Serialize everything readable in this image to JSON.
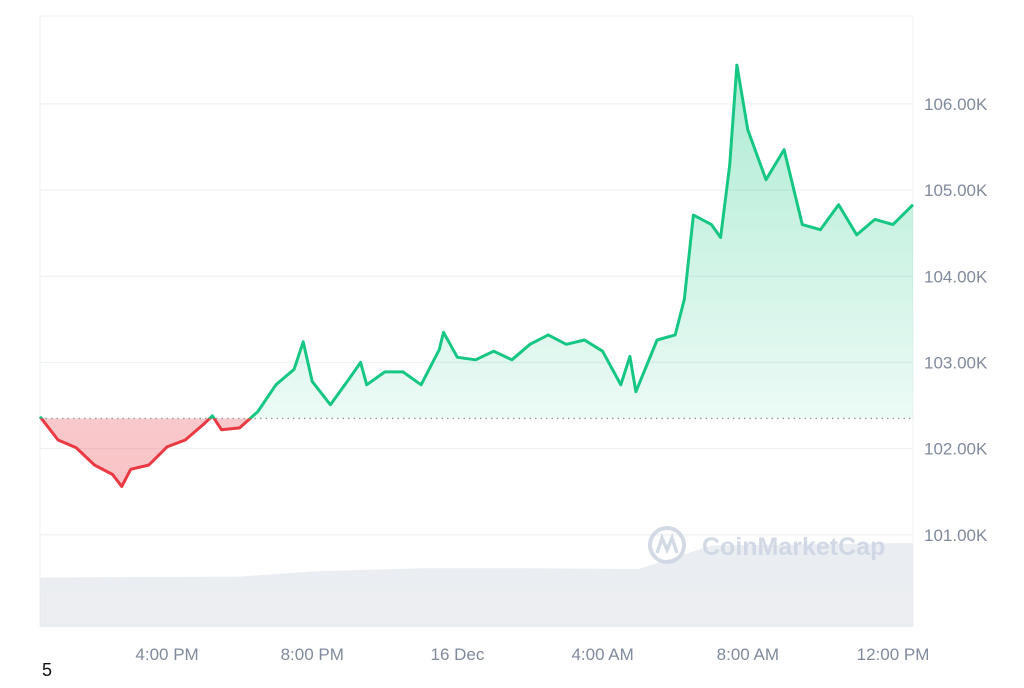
{
  "chart_data": {
    "type": "area",
    "title": "",
    "xlabel": "",
    "ylabel": "",
    "x_ticks": [
      "4:00 PM",
      "8:00 PM",
      "16 Dec",
      "4:00 AM",
      "8:00 AM",
      "12:00 PM"
    ],
    "x_tick_times": [
      "15 Dec 16:00",
      "15 Dec 20:00",
      "16 Dec 00:00",
      "16 Dec 04:00",
      "16 Dec 08:00",
      "16 Dec 12:00"
    ],
    "xlim": [
      "15 Dec 12:30",
      "16 Dec 12:33"
    ],
    "y_ticks": [
      "101.00K",
      "102.00K",
      "103.00K",
      "104.00K",
      "105.00K",
      "106.00K"
    ],
    "y_tick_values": [
      101,
      102,
      103,
      104,
      105,
      106
    ],
    "ylim": [
      99.93,
      107.02
    ],
    "y_unit": "K",
    "baseline": 102.35,
    "grid": "horizontal",
    "colors": {
      "up": "#16c784",
      "down": "#ea3943",
      "grid": "#eff2f5",
      "volume": "#e6eaee",
      "axis_text": "#808a9d"
    },
    "series": [
      {
        "x": [
          "15 Dec 12:30",
          "15 Dec 13:00",
          "15 Dec 13:30",
          "15 Dec 14:00",
          "15 Dec 14:30",
          "15 Dec 14:45",
          "15 Dec 15:00",
          "15 Dec 15:30",
          "15 Dec 16:00",
          "15 Dec 16:30",
          "15 Dec 17:00",
          "15 Dec 17:15",
          "15 Dec 17:30",
          "15 Dec 18:00",
          "15 Dec 18:30",
          "15 Dec 19:00",
          "15 Dec 19:30",
          "15 Dec 19:45",
          "15 Dec 20:00",
          "15 Dec 20:30",
          "15 Dec 21:00",
          "15 Dec 21:20",
          "15 Dec 21:30",
          "15 Dec 22:00",
          "15 Dec 22:30",
          "15 Dec 23:00",
          "15 Dec 23:30",
          "15 Dec 23:37",
          "16 Dec 00:00",
          "16 Dec 00:30",
          "16 Dec 01:00",
          "16 Dec 01:30",
          "16 Dec 02:00",
          "16 Dec 02:30",
          "16 Dec 03:00",
          "16 Dec 03:30",
          "16 Dec 04:00",
          "16 Dec 04:30",
          "16 Dec 04:45",
          "16 Dec 04:55",
          "16 Dec 05:30",
          "16 Dec 06:00",
          "16 Dec 06:15",
          "16 Dec 06:30",
          "16 Dec 07:00",
          "16 Dec 07:15",
          "16 Dec 07:30",
          "16 Dec 07:42",
          "16 Dec 08:00",
          "16 Dec 08:30",
          "16 Dec 09:00",
          "16 Dec 09:30",
          "16 Dec 10:00",
          "16 Dec 10:30",
          "16 Dec 11:00",
          "16 Dec 11:30",
          "16 Dec 12:00",
          "16 Dec 12:33"
        ],
        "values": [
          102.37,
          102.1,
          102.01,
          101.81,
          101.7,
          101.56,
          101.76,
          101.81,
          102.02,
          102.1,
          102.28,
          102.38,
          102.22,
          102.24,
          102.43,
          102.74,
          102.92,
          103.24,
          102.78,
          102.51,
          102.8,
          103.0,
          102.74,
          102.89,
          102.89,
          102.74,
          103.15,
          103.35,
          103.06,
          103.03,
          103.13,
          103.03,
          103.21,
          103.32,
          103.21,
          103.26,
          103.13,
          102.74,
          103.07,
          102.66,
          103.26,
          103.32,
          103.73,
          104.71,
          104.6,
          104.45,
          105.29,
          106.45,
          105.7,
          105.12,
          105.47,
          104.6,
          104.54,
          104.83,
          104.48,
          104.66,
          104.6,
          104.83
        ]
      }
    ],
    "volume_relative": {
      "x": [
        "15 Dec 12:30",
        "15 Dec 18:00",
        "15 Dec 20:00",
        "15 Dec 23:00",
        "16 Dec 02:00",
        "16 Dec 05:00",
        "16 Dec 07:00",
        "16 Dec 12:33"
      ],
      "values": [
        0.59,
        0.6,
        0.66,
        0.7,
        0.7,
        0.69,
        0.97,
        1.0
      ]
    }
  },
  "watermark": "CoinMarketCap",
  "footer_text": "5"
}
